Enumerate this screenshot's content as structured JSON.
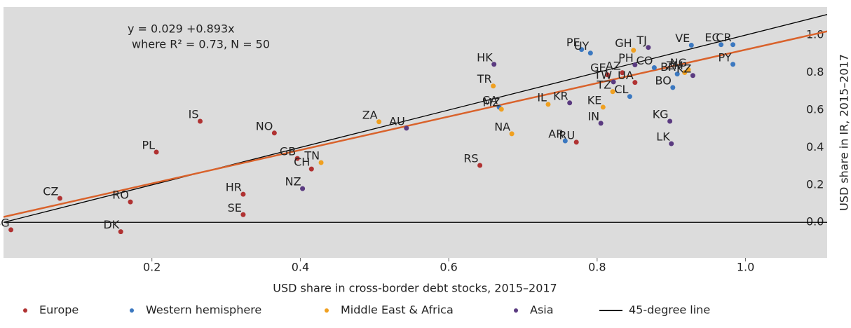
{
  "chart_data": {
    "type": "scatter",
    "xlabel": "USD share in cross-border debt stocks, 2015–2017",
    "ylabel": "USD share in IR, 2015–2017",
    "annotations": [
      "y = 0.029 +0.893x",
      "where R² = 0.73, N = 50"
    ],
    "xlim": [
      0,
      1.11
    ],
    "ylim": [
      -0.19,
      1.15
    ],
    "xticks": [
      0.2,
      0.4,
      0.6,
      0.8,
      {
        "value": 1,
        "label": "1.0"
      }
    ],
    "yticks": [
      {
        "value": 0,
        "label": "0.0"
      },
      0.2,
      0.4,
      0.6,
      0.8,
      {
        "value": 1,
        "label": "1.0"
      }
    ],
    "grid": false,
    "regression": {
      "intercept": 0.029,
      "slope": 0.893,
      "color": "#d9622b"
    },
    "reference_line": {
      "name": "45-degree line",
      "color": "#000000"
    },
    "series": [
      {
        "name": "Europe",
        "color": "#b03232",
        "labels": [
          "BG",
          "DK",
          "CZ",
          "RO",
          "PL",
          "IS",
          "NO",
          "GB",
          "HR",
          "SE",
          "CH",
          "RS",
          "RU",
          "GE",
          "AZ",
          "UA"
        ],
        "x": [
          0.01,
          0.158,
          0.076,
          0.171,
          0.206,
          0.265,
          0.365,
          0.396,
          0.323,
          0.323,
          0.415,
          0.642,
          0.772,
          0.814,
          0.834,
          0.851
        ],
        "values": [
          -0.04,
          -0.05,
          0.128,
          0.109,
          0.375,
          0.54,
          0.477,
          0.341,
          0.15,
          0.041,
          0.285,
          0.304,
          0.428,
          0.788,
          0.799,
          0.747
        ]
      },
      {
        "name": "Western hemisphere",
        "color": "#3b78c0",
        "labels": [
          "PE",
          "UY",
          "VE",
          "EC",
          "CR",
          "CO",
          "BR",
          "BO",
          "CL",
          "PY",
          "AR",
          "CA"
        ],
        "x": [
          0.779,
          0.791,
          0.927,
          0.967,
          0.983,
          0.877,
          0.908,
          0.902,
          0.844,
          0.983,
          0.757,
          0.668
        ],
        "values": [
          0.923,
          0.904,
          0.946,
          0.949,
          0.949,
          0.826,
          0.792,
          0.72,
          0.672,
          0.844,
          0.435,
          0.615
        ]
      },
      {
        "name": "Middle East & Africa",
        "color": "#f0a020",
        "labels": [
          "GH",
          "ZM",
          "NG",
          "TR",
          "MZ",
          "ZA",
          "IL",
          "TZ",
          "KE",
          "NA",
          "TN"
        ],
        "x": [
          0.849,
          0.918,
          0.923,
          0.66,
          0.671,
          0.506,
          0.734,
          0.821,
          0.808,
          0.685,
          0.428
        ],
        "values": [
          0.919,
          0.8,
          0.815,
          0.728,
          0.604,
          0.537,
          0.63,
          0.698,
          0.615,
          0.473,
          0.319
        ]
      },
      {
        "name": "Asia",
        "color": "#5a3a80",
        "labels": [
          "HK",
          "AU",
          "KR",
          "TW",
          "PH",
          "TJ",
          "IN",
          "KG",
          "LK",
          "NZ",
          "KZ"
        ],
        "x": [
          0.661,
          0.543,
          0.763,
          0.822,
          0.851,
          0.869,
          0.805,
          0.898,
          0.9,
          0.403,
          0.929
        ],
        "values": [
          0.844,
          0.503,
          0.638,
          0.75,
          0.841,
          0.934,
          0.529,
          0.54,
          0.42,
          0.18,
          0.784
        ]
      }
    ]
  }
}
